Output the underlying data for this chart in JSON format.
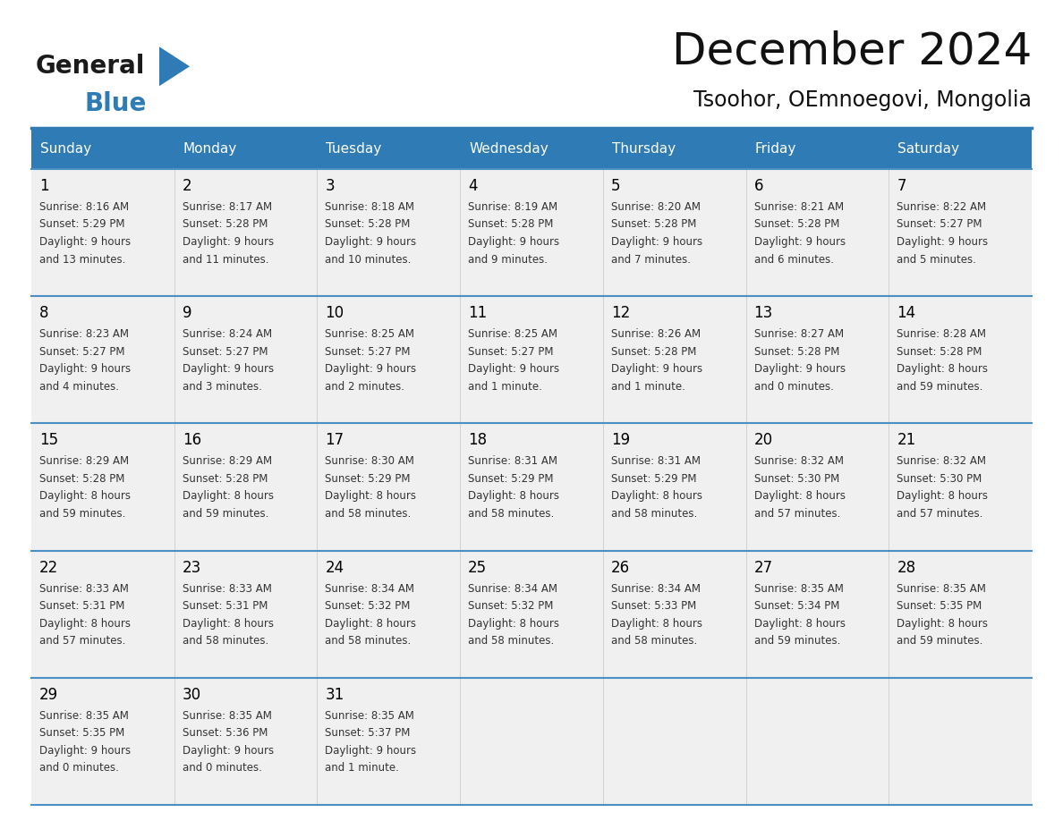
{
  "title": "December 2024",
  "subtitle": "Tsoohor, OEmnoegovi, Mongolia",
  "header_bg": "#2E7BB5",
  "header_text_color": "#FFFFFF",
  "cell_bg": "#F0F0F0",
  "cell_bg_empty": "#FFFFFF",
  "border_color": "#2E7BB5",
  "row_border_color": "#4A90C4",
  "text_color": "#000000",
  "detail_text_color": "#333333",
  "days_of_week": [
    "Sunday",
    "Monday",
    "Tuesday",
    "Wednesday",
    "Thursday",
    "Friday",
    "Saturday"
  ],
  "weeks": [
    [
      {
        "day": 1,
        "sunrise": "8:16 AM",
        "sunset": "5:29 PM",
        "daylight_hours": 9,
        "daylight_minutes": 13
      },
      {
        "day": 2,
        "sunrise": "8:17 AM",
        "sunset": "5:28 PM",
        "daylight_hours": 9,
        "daylight_minutes": 11
      },
      {
        "day": 3,
        "sunrise": "8:18 AM",
        "sunset": "5:28 PM",
        "daylight_hours": 9,
        "daylight_minutes": 10
      },
      {
        "day": 4,
        "sunrise": "8:19 AM",
        "sunset": "5:28 PM",
        "daylight_hours": 9,
        "daylight_minutes": 9
      },
      {
        "day": 5,
        "sunrise": "8:20 AM",
        "sunset": "5:28 PM",
        "daylight_hours": 9,
        "daylight_minutes": 7
      },
      {
        "day": 6,
        "sunrise": "8:21 AM",
        "sunset": "5:28 PM",
        "daylight_hours": 9,
        "daylight_minutes": 6
      },
      {
        "day": 7,
        "sunrise": "8:22 AM",
        "sunset": "5:27 PM",
        "daylight_hours": 9,
        "daylight_minutes": 5
      }
    ],
    [
      {
        "day": 8,
        "sunrise": "8:23 AM",
        "sunset": "5:27 PM",
        "daylight_hours": 9,
        "daylight_minutes": 4
      },
      {
        "day": 9,
        "sunrise": "8:24 AM",
        "sunset": "5:27 PM",
        "daylight_hours": 9,
        "daylight_minutes": 3
      },
      {
        "day": 10,
        "sunrise": "8:25 AM",
        "sunset": "5:27 PM",
        "daylight_hours": 9,
        "daylight_minutes": 2
      },
      {
        "day": 11,
        "sunrise": "8:25 AM",
        "sunset": "5:27 PM",
        "daylight_hours": 9,
        "daylight_minutes": 1
      },
      {
        "day": 12,
        "sunrise": "8:26 AM",
        "sunset": "5:28 PM",
        "daylight_hours": 9,
        "daylight_minutes": 1
      },
      {
        "day": 13,
        "sunrise": "8:27 AM",
        "sunset": "5:28 PM",
        "daylight_hours": 9,
        "daylight_minutes": 0
      },
      {
        "day": 14,
        "sunrise": "8:28 AM",
        "sunset": "5:28 PM",
        "daylight_hours": 8,
        "daylight_minutes": 59
      }
    ],
    [
      {
        "day": 15,
        "sunrise": "8:29 AM",
        "sunset": "5:28 PM",
        "daylight_hours": 8,
        "daylight_minutes": 59
      },
      {
        "day": 16,
        "sunrise": "8:29 AM",
        "sunset": "5:28 PM",
        "daylight_hours": 8,
        "daylight_minutes": 59
      },
      {
        "day": 17,
        "sunrise": "8:30 AM",
        "sunset": "5:29 PM",
        "daylight_hours": 8,
        "daylight_minutes": 58
      },
      {
        "day": 18,
        "sunrise": "8:31 AM",
        "sunset": "5:29 PM",
        "daylight_hours": 8,
        "daylight_minutes": 58
      },
      {
        "day": 19,
        "sunrise": "8:31 AM",
        "sunset": "5:29 PM",
        "daylight_hours": 8,
        "daylight_minutes": 58
      },
      {
        "day": 20,
        "sunrise": "8:32 AM",
        "sunset": "5:30 PM",
        "daylight_hours": 8,
        "daylight_minutes": 57
      },
      {
        "day": 21,
        "sunrise": "8:32 AM",
        "sunset": "5:30 PM",
        "daylight_hours": 8,
        "daylight_minutes": 57
      }
    ],
    [
      {
        "day": 22,
        "sunrise": "8:33 AM",
        "sunset": "5:31 PM",
        "daylight_hours": 8,
        "daylight_minutes": 57
      },
      {
        "day": 23,
        "sunrise": "8:33 AM",
        "sunset": "5:31 PM",
        "daylight_hours": 8,
        "daylight_minutes": 58
      },
      {
        "day": 24,
        "sunrise": "8:34 AM",
        "sunset": "5:32 PM",
        "daylight_hours": 8,
        "daylight_minutes": 58
      },
      {
        "day": 25,
        "sunrise": "8:34 AM",
        "sunset": "5:32 PM",
        "daylight_hours": 8,
        "daylight_minutes": 58
      },
      {
        "day": 26,
        "sunrise": "8:34 AM",
        "sunset": "5:33 PM",
        "daylight_hours": 8,
        "daylight_minutes": 58
      },
      {
        "day": 27,
        "sunrise": "8:35 AM",
        "sunset": "5:34 PM",
        "daylight_hours": 8,
        "daylight_minutes": 59
      },
      {
        "day": 28,
        "sunrise": "8:35 AM",
        "sunset": "5:35 PM",
        "daylight_hours": 8,
        "daylight_minutes": 59
      }
    ],
    [
      {
        "day": 29,
        "sunrise": "8:35 AM",
        "sunset": "5:35 PM",
        "daylight_hours": 9,
        "daylight_minutes": 0
      },
      {
        "day": 30,
        "sunrise": "8:35 AM",
        "sunset": "5:36 PM",
        "daylight_hours": 9,
        "daylight_minutes": 0
      },
      {
        "day": 31,
        "sunrise": "8:35 AM",
        "sunset": "5:37 PM",
        "daylight_hours": 9,
        "daylight_minutes": 1
      },
      null,
      null,
      null,
      null
    ]
  ],
  "logo_text_general": "General",
  "logo_text_blue": "Blue",
  "fig_width": 11.88,
  "fig_height": 9.18,
  "dpi": 100
}
